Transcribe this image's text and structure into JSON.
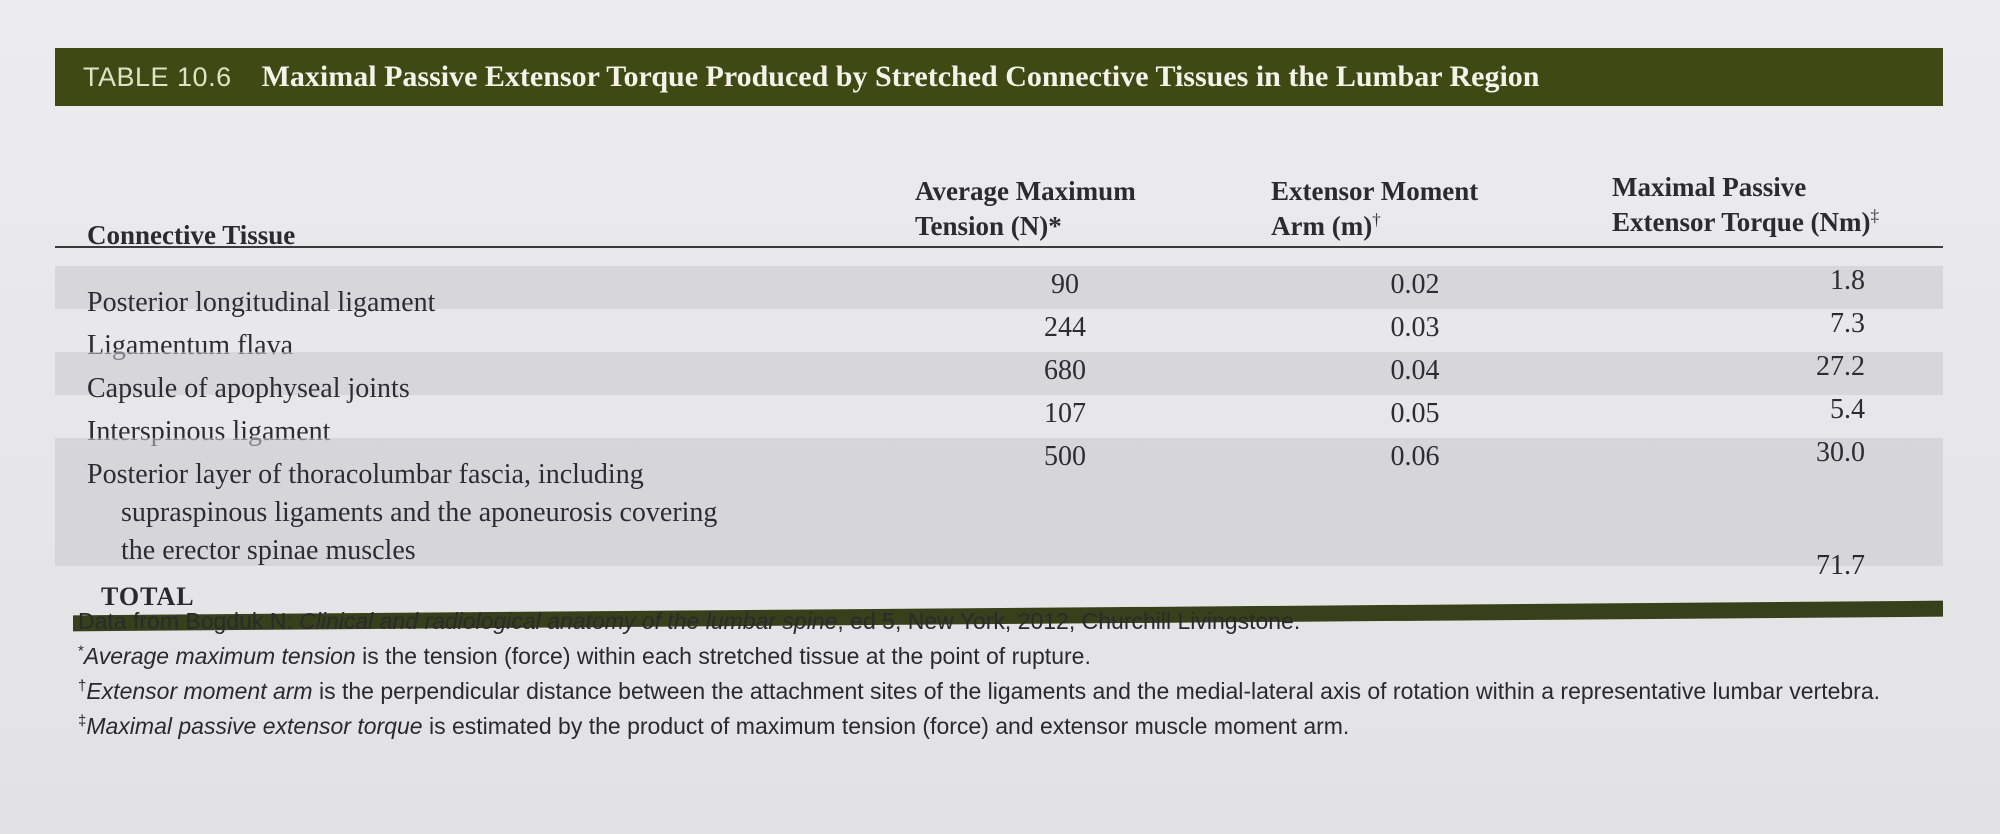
{
  "table": {
    "number": "TABLE 10.6",
    "title": "Maximal Passive Extensor Torque Produced by Stretched Connective Tissues in the Lumbar Region",
    "columns": {
      "tissue": "Connective Tissue",
      "tension_line1": "Average Maximum",
      "tension_line2": "Tension (N)*",
      "moment_line1": "Extensor Moment",
      "moment_line2": "Arm (m)",
      "moment_mark": "†",
      "torque_line1": "Maximal Passive",
      "torque_line2": "Extensor Torque (Nm)",
      "torque_mark": "‡"
    },
    "rows": [
      {
        "tissue": "Posterior longitudinal ligament",
        "tension": "90",
        "moment": "0.02",
        "torque": "1.8"
      },
      {
        "tissue": "Ligamentum flava",
        "tension": "244",
        "moment": "0.03",
        "torque": "7.3"
      },
      {
        "tissue": "Capsule of apophyseal joints",
        "tension": "680",
        "moment": "0.04",
        "torque": "27.2"
      },
      {
        "tissue": "Interspinous ligament",
        "tension": "107",
        "moment": "0.05",
        "torque": "5.4"
      },
      {
        "tissue_line1": "Posterior layer of thoracolumbar fascia, including",
        "tissue_line2": "supraspinous ligaments and the aponeurosis covering",
        "tissue_line3": "the erector spinae muscles",
        "tension": "500",
        "moment": "0.06",
        "torque": "30.0"
      }
    ],
    "total_label": "TOTAL",
    "total_value": "71.7"
  },
  "notes": {
    "source_prefix": "Data from Bogduk N: ",
    "source_title": "Clinical and radiological anatomy of the lumbar spine",
    "source_suffix": ", ed 5, New York, 2012, Churchill Livingstone.",
    "n1_mark": "*",
    "n1_term": "Average maximum tension",
    "n1_text": " is the tension (force) within each stretched tissue at the point of rupture.",
    "n2_mark": "†",
    "n2_term": "Extensor moment arm",
    "n2_text": " is the perpendicular distance between the attachment sites of the ligaments and the medial-lateral axis of rotation within a representative lumbar vertebra.",
    "n3_mark": "‡",
    "n3_term": "Maximal passive extensor torque",
    "n3_text": " is estimated by the product of maximum tension (force) and extensor muscle moment arm."
  }
}
